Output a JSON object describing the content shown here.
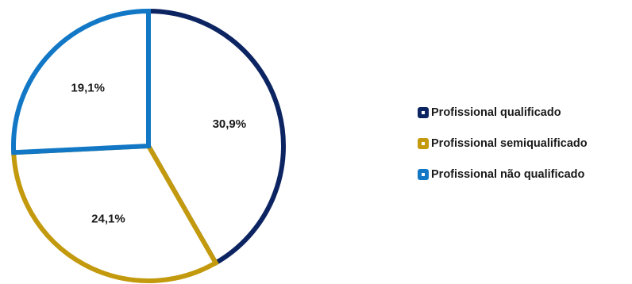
{
  "chart_data": {
    "type": "pie",
    "slices": [
      {
        "label": "Profissional qualificado",
        "value": 30.9,
        "display": "30,9%",
        "color": "#0c2461"
      },
      {
        "label": "Profissional semiqualificado",
        "value": 24.1,
        "display": "24,1%",
        "color": "#c39a0e"
      },
      {
        "label": "Profissional não qualificado",
        "value": 19.1,
        "display": "19,1%",
        "color": "#1278c6"
      }
    ],
    "legend_position": "right"
  }
}
